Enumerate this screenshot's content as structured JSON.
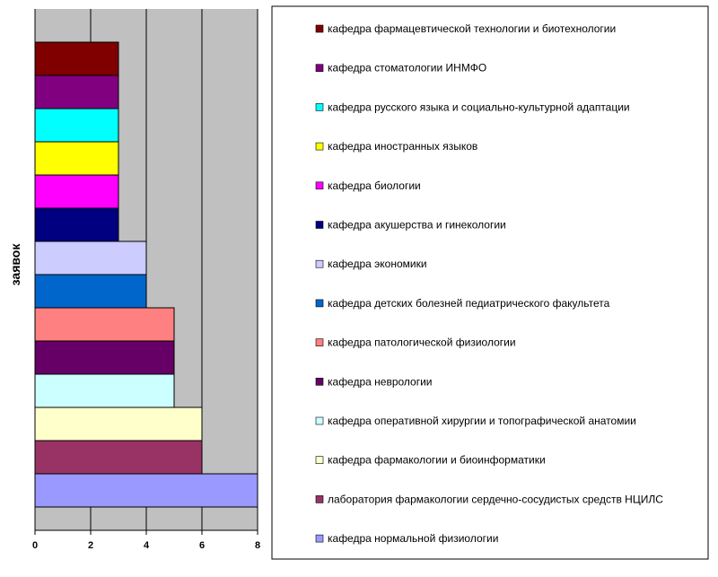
{
  "chart_data": {
    "type": "bar",
    "orientation": "horizontal",
    "title": "",
    "xlabel": "",
    "ylabel": "заявок",
    "xlim": [
      0,
      8
    ],
    "x_ticks": [
      "0",
      "2",
      "4",
      "6",
      "8"
    ],
    "grid": true,
    "legend_position": "right",
    "background_color": "#c0c0c0",
    "categories": [
      "кафедра нормальной физиологии",
      "лаборатория фармакологии сердечно-сосудистых средств НЦИЛС",
      "кафедра фармакологии и биоинформатики",
      "кафедра оперативной хирургии и топографической анатомии",
      "кафедра неврологии",
      "кафедра патологической физиологии",
      "кафедра детских болезней педиатрического факультета",
      "кафедра экономики",
      "кафедра акушерства и гинекологии",
      "кафедра биологии",
      "кафедра иностранных языков",
      "кафедра русского языка и социально-культурной адаптации",
      "кафедра стоматологии ИНМФО",
      "кафедра фармацевтической технологии и биотехнологии"
    ],
    "values": [
      8,
      6,
      6,
      5,
      5,
      5,
      4,
      4,
      3,
      3,
      3,
      3,
      3,
      3
    ],
    "colors": [
      "#9999ff",
      "#993366",
      "#ffffcc",
      "#ccffff",
      "#660066",
      "#ff8080",
      "#0066cc",
      "#ccccff",
      "#000080",
      "#ff00ff",
      "#ffff00",
      "#00ffff",
      "#800080",
      "#800000"
    ]
  }
}
